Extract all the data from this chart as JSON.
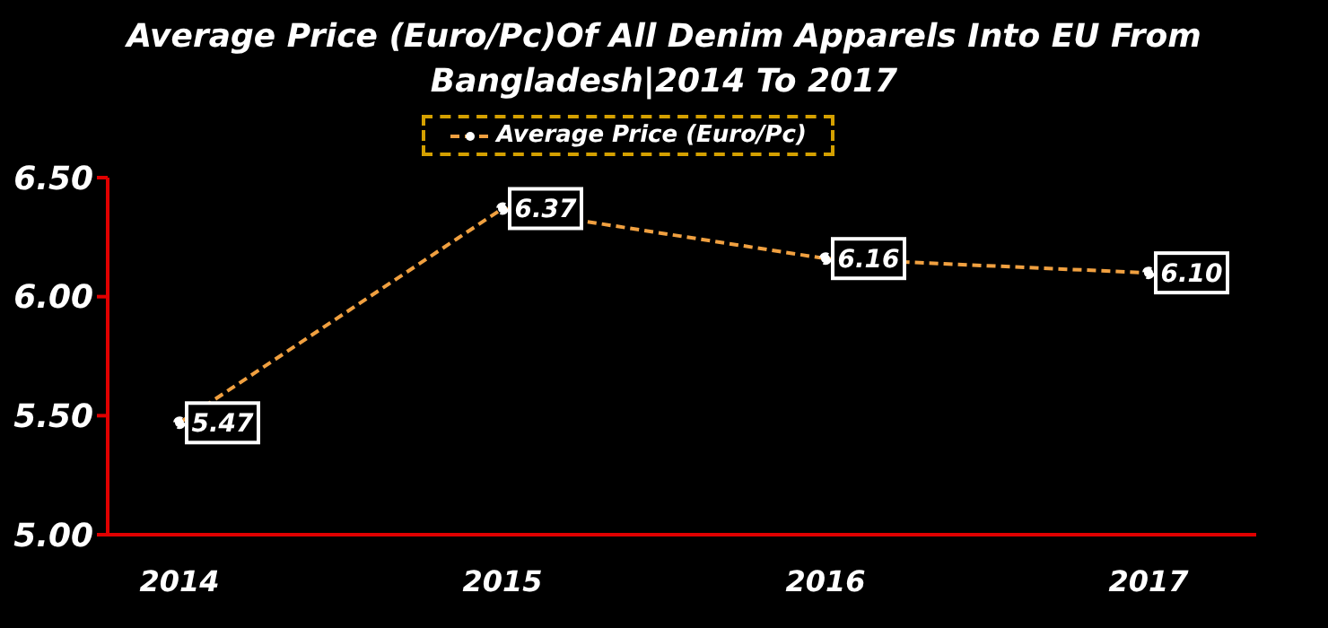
{
  "chart_data": {
    "type": "line",
    "title": "Average Price (Euro/Pc)Of All Denim Apparels Into EU From Bangladesh|2014 To 2017",
    "categories": [
      "2014",
      "2015",
      "2016",
      "2017"
    ],
    "series": [
      {
        "name": "Average Price (Euro/Pc)",
        "color": "#f0a040",
        "values": [
          5.47,
          6.37,
          6.16,
          6.1
        ],
        "value_labels": [
          "5.47",
          "6.37",
          "6.16",
          "6.10"
        ]
      }
    ],
    "ylim": [
      5.0,
      6.5
    ],
    "yticks": [
      {
        "value": 5.0,
        "label": "5.00"
      },
      {
        "value": 5.5,
        "label": "5.50"
      },
      {
        "value": 6.0,
        "label": "6.00"
      },
      {
        "value": 6.5,
        "label": "6.50"
      }
    ],
    "grid": false,
    "legend": "top",
    "marker": "circle",
    "line_style": "dashed"
  }
}
